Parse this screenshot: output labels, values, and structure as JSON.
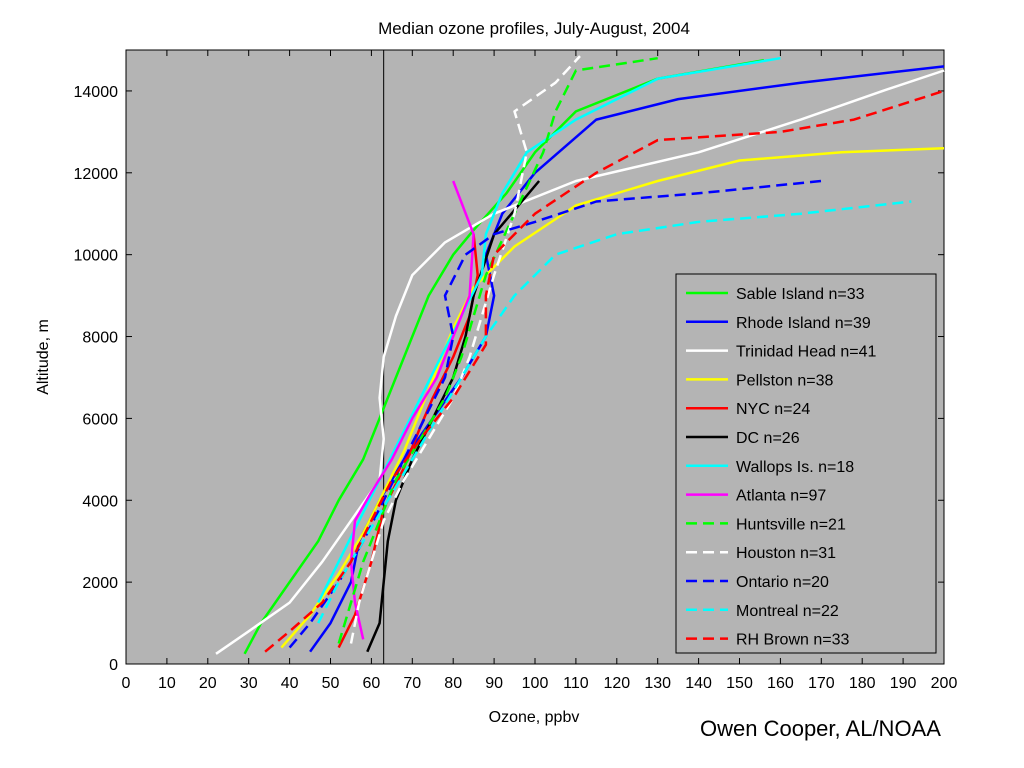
{
  "chart_data": {
    "type": "line",
    "title": "Median ozone profiles, July-August, 2004",
    "xlabel": "Ozone, ppbv",
    "ylabel": "Altitude, m",
    "xlim": [
      0,
      200
    ],
    "ylim": [
      0,
      15000
    ],
    "xticks": [
      0,
      10,
      20,
      30,
      40,
      50,
      60,
      70,
      80,
      90,
      100,
      110,
      120,
      130,
      140,
      150,
      160,
      170,
      180,
      190,
      200
    ],
    "yticks": [
      0,
      2000,
      4000,
      6000,
      8000,
      10000,
      12000,
      14000
    ],
    "reference_line_x": 63,
    "grid": false,
    "legend_position": "lower-right",
    "background": "#b4b4b4",
    "series": [
      {
        "name": "Sable Island n=33",
        "color": "#00ff00",
        "dash": false,
        "x": [
          29,
          33,
          40,
          47,
          52,
          58,
          62,
          66,
          70,
          74,
          80,
          85,
          93,
          100,
          110,
          130,
          156
        ],
        "y": [
          250,
          1000,
          2000,
          3000,
          4000,
          5000,
          6000,
          7000,
          8000,
          9000,
          10000,
          10600,
          11500,
          12500,
          13500,
          14300,
          14750
        ]
      },
      {
        "name": "Rhode Island n=39",
        "color": "#0000ff",
        "dash": false,
        "x": [
          45,
          50,
          55,
          57,
          62,
          68,
          75,
          82,
          88,
          90,
          88,
          92,
          100,
          115,
          135,
          165,
          200
        ],
        "y": [
          300,
          1000,
          2000,
          3000,
          4000,
          5000,
          6000,
          7000,
          8000,
          9000,
          10000,
          11000,
          12000,
          13300,
          13800,
          14200,
          14600
        ]
      },
      {
        "name": "Trinidad Head n=41",
        "color": "#ffffff",
        "dash": false,
        "x": [
          22,
          30,
          40,
          48,
          55,
          62,
          63,
          62,
          63,
          66,
          70,
          78,
          90,
          110,
          140,
          165,
          185,
          200
        ],
        "y": [
          250,
          800,
          1500,
          2500,
          3500,
          4500,
          5500,
          6500,
          7500,
          8500,
          9500,
          10300,
          11000,
          11800,
          12500,
          13300,
          14000,
          14500
        ]
      },
      {
        "name": "Pellston n=38",
        "color": "#ffff00",
        "dash": false,
        "x": [
          38,
          45,
          52,
          58,
          63,
          68,
          72,
          76,
          80,
          85,
          95,
          110,
          130,
          150,
          175,
          200
        ],
        "y": [
          400,
          1200,
          2200,
          3200,
          4200,
          5200,
          6200,
          7200,
          8200,
          9200,
          10200,
          11200,
          11800,
          12300,
          12500,
          12600
        ]
      },
      {
        "name": "NYC n=24",
        "color": "#ff0000",
        "dash": false,
        "x": [
          52,
          56,
          60,
          63,
          68,
          72,
          75,
          80,
          84,
          86,
          85
        ],
        "y": [
          400,
          1200,
          2500,
          3800,
          4800,
          5800,
          6500,
          7500,
          8500,
          9500,
          10500
        ]
      },
      {
        "name": "DC n=26",
        "color": "#000000",
        "dash": false,
        "x": [
          59,
          62,
          63,
          64,
          66,
          70,
          75,
          80,
          83,
          85,
          90,
          101
        ],
        "y": [
          300,
          1000,
          2000,
          3000,
          4000,
          5000,
          6000,
          7000,
          8000,
          9000,
          10500,
          11800
        ]
      },
      {
        "name": "Wallops Is. n=18",
        "color": "#00ffff",
        "dash": false,
        "x": [
          47,
          52,
          57,
          62,
          67,
          72,
          77,
          82,
          87,
          88,
          92,
          98,
          110,
          130,
          160
        ],
        "y": [
          1500,
          2500,
          3500,
          4500,
          5500,
          6500,
          7500,
          8500,
          9500,
          10500,
          11500,
          12500,
          13300,
          14300,
          14800
        ]
      },
      {
        "name": "Atlanta n=97",
        "color": "#ff00ff",
        "dash": false,
        "x": [
          58,
          56,
          55,
          56,
          60,
          65,
          70,
          76,
          80,
          84,
          85,
          80
        ],
        "y": [
          600,
          1500,
          2500,
          3500,
          4200,
          5000,
          6000,
          7000,
          8000,
          9000,
          10500,
          11800
        ]
      },
      {
        "name": "Huntsville n=21",
        "color": "#00ff00",
        "dash": true,
        "x": [
          52,
          55,
          58,
          62,
          66,
          72,
          78,
          82,
          85,
          88,
          95,
          102,
          105,
          110,
          130
        ],
        "y": [
          500,
          1500,
          2500,
          3500,
          4500,
          5500,
          6500,
          7500,
          8500,
          9500,
          11000,
          12500,
          13500,
          14500,
          14800
        ]
      },
      {
        "name": "Houston n=31",
        "color": "#ffffff",
        "dash": true,
        "x": [
          55,
          57,
          60,
          63,
          68,
          74,
          80,
          84,
          87,
          90,
          95,
          98,
          95,
          105,
          111
        ],
        "y": [
          500,
          1500,
          2500,
          3500,
          4500,
          5500,
          6500,
          7500,
          8500,
          9500,
          11000,
          12500,
          13500,
          14200,
          14850
        ]
      },
      {
        "name": "Ontario n=20",
        "color": "#0000ff",
        "dash": true,
        "x": [
          40,
          45,
          52,
          58,
          63,
          68,
          73,
          78,
          80,
          78,
          83,
          90,
          100,
          115,
          140,
          170
        ],
        "y": [
          400,
          1000,
          2000,
          3000,
          4000,
          5000,
          6000,
          7000,
          8000,
          9000,
          10000,
          10500,
          10800,
          11300,
          11500,
          11800
        ]
      },
      {
        "name": "Montreal n=22",
        "color": "#00ffff",
        "dash": true,
        "x": [
          47,
          52,
          58,
          64,
          70,
          76,
          82,
          88,
          95,
          105,
          120,
          140,
          165,
          192
        ],
        "y": [
          1000,
          2000,
          3000,
          4000,
          5000,
          6000,
          7000,
          8000,
          9000,
          10000,
          10500,
          10800,
          11000,
          11300
        ]
      },
      {
        "name": "RH Brown n=33",
        "color": "#ff0000",
        "dash": true,
        "x": [
          34,
          40,
          48,
          55,
          60,
          65,
          72,
          80,
          88,
          88,
          90,
          100,
          115,
          130,
          160,
          178,
          200
        ],
        "y": [
          300,
          800,
          1500,
          2500,
          3500,
          4500,
          5500,
          6500,
          7800,
          9000,
          10000,
          11000,
          12000,
          12800,
          13000,
          13300,
          14000
        ]
      }
    ]
  },
  "credit": "Owen Cooper, AL/NOAA"
}
